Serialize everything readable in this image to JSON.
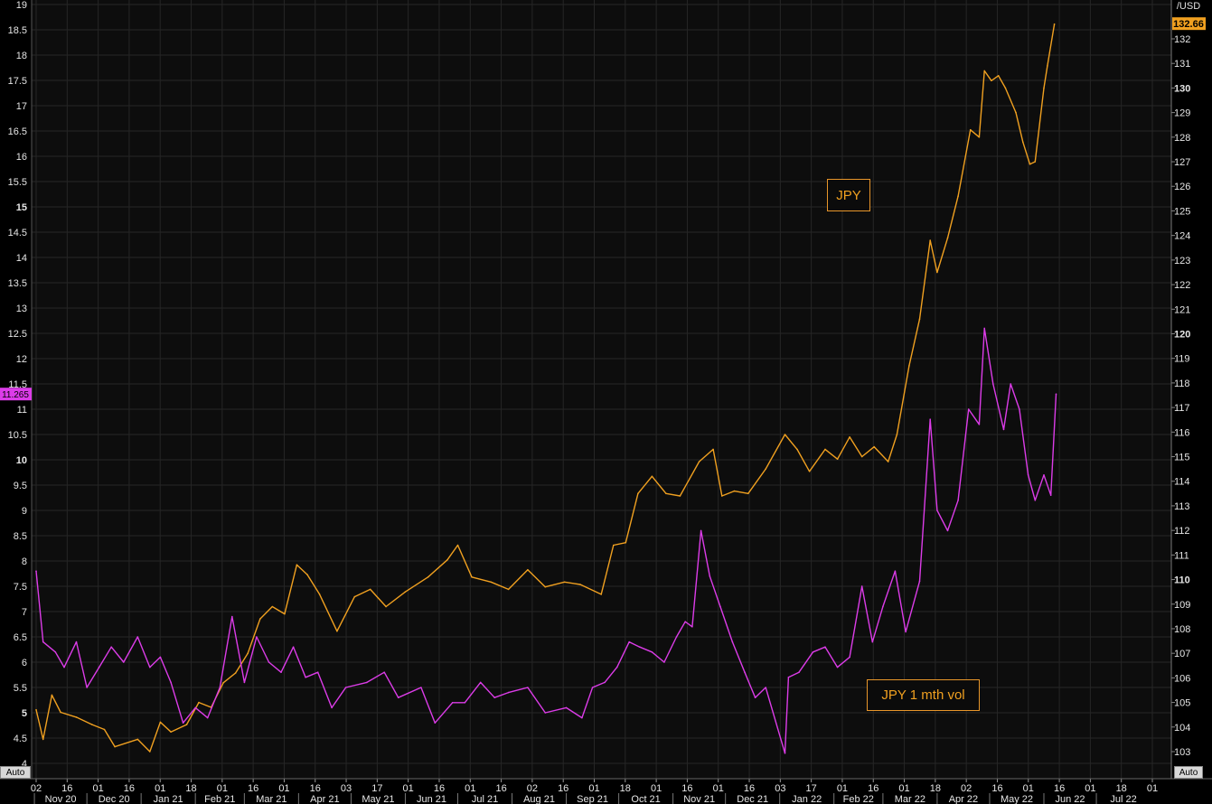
{
  "chart_data": {
    "type": "line",
    "left_axis": {
      "ticks": [
        "4",
        "4.5",
        "5",
        "5.5",
        "6",
        "6.5",
        "7",
        "7.5",
        "8",
        "8.5",
        "9",
        "9.5",
        "10",
        "10.5",
        "11",
        "11.5",
        "12",
        "12.5",
        "13",
        "13.5",
        "14",
        "14.5",
        "15",
        "15.5",
        "16",
        "16.5",
        "17",
        "17.5",
        "18",
        "18.5",
        "19"
      ],
      "range": [
        4,
        19
      ],
      "last_value_label": "11.265"
    },
    "right_axis": {
      "unit_label": "/USD",
      "ticks": [
        "103",
        "104",
        "105",
        "106",
        "107",
        "108",
        "109",
        "110",
        "111",
        "112",
        "113",
        "114",
        "115",
        "116",
        "117",
        "118",
        "119",
        "120",
        "121",
        "122",
        "123",
        "124",
        "125",
        "126",
        "127",
        "128",
        "129",
        "130",
        "131",
        "132"
      ],
      "range": [
        102.7,
        133.5
      ],
      "last_value_label": "132.66"
    },
    "x_axis": {
      "day_ticks": [
        "02",
        "16",
        "01",
        "16",
        "01",
        "18",
        "01",
        "16",
        "01",
        "16",
        "03",
        "17",
        "01",
        "16",
        "01",
        "16",
        "02",
        "16",
        "01",
        "18",
        "01",
        "16",
        "01",
        "16",
        "03",
        "17",
        "01",
        "16",
        "01",
        "18",
        "02",
        "16",
        "01",
        "16",
        "01",
        "18",
        "01"
      ],
      "month_labels": [
        "Nov 20",
        "Dec 20",
        "Jan 21",
        "Feb 21",
        "Mar 21",
        "Apr 21",
        "May 21",
        "Jun 21",
        "Jul 21",
        "Aug 21",
        "Sep 21",
        "Oct 21",
        "Nov 21",
        "Dec 21",
        "Jan 22",
        "Feb 22",
        "Mar 22",
        "Apr 22",
        "May 22",
        "Jun 22",
        "Jul 22"
      ]
    },
    "series": [
      {
        "name": "JPY",
        "axis": "right",
        "color": "#f0a020",
        "points": [
          [
            "2020-11-02",
            104.7
          ],
          [
            "2020-11-06",
            103.5
          ],
          [
            "2020-11-11",
            105.3
          ],
          [
            "2020-11-16",
            104.6
          ],
          [
            "2020-11-25",
            104.4
          ],
          [
            "2020-12-04",
            104.1
          ],
          [
            "2020-12-11",
            103.9
          ],
          [
            "2020-12-17",
            103.2
          ],
          [
            "2020-12-30",
            103.5
          ],
          [
            "2021-01-06",
            103.0
          ],
          [
            "2021-01-12",
            104.2
          ],
          [
            "2021-01-18",
            103.8
          ],
          [
            "2021-01-27",
            104.1
          ],
          [
            "2021-02-03",
            105.0
          ],
          [
            "2021-02-10",
            104.8
          ],
          [
            "2021-02-17",
            105.8
          ],
          [
            "2021-02-24",
            106.2
          ],
          [
            "2021-03-03",
            107.0
          ],
          [
            "2021-03-10",
            108.4
          ],
          [
            "2021-03-17",
            108.9
          ],
          [
            "2021-03-24",
            108.6
          ],
          [
            "2021-03-31",
            110.6
          ],
          [
            "2021-04-06",
            110.2
          ],
          [
            "2021-04-13",
            109.4
          ],
          [
            "2021-04-23",
            107.9
          ],
          [
            "2021-05-03",
            109.3
          ],
          [
            "2021-05-12",
            109.6
          ],
          [
            "2021-05-21",
            108.9
          ],
          [
            "2021-06-01",
            109.5
          ],
          [
            "2021-06-14",
            110.1
          ],
          [
            "2021-06-25",
            110.8
          ],
          [
            "2021-07-01",
            111.4
          ],
          [
            "2021-07-09",
            110.1
          ],
          [
            "2021-07-20",
            109.9
          ],
          [
            "2021-07-30",
            109.6
          ],
          [
            "2021-08-10",
            110.4
          ],
          [
            "2021-08-20",
            109.7
          ],
          [
            "2021-08-31",
            109.9
          ],
          [
            "2021-09-09",
            109.8
          ],
          [
            "2021-09-21",
            109.4
          ],
          [
            "2021-09-28",
            111.4
          ],
          [
            "2021-10-05",
            111.5
          ],
          [
            "2021-10-12",
            113.5
          ],
          [
            "2021-10-20",
            114.2
          ],
          [
            "2021-10-28",
            113.5
          ],
          [
            "2021-11-05",
            113.4
          ],
          [
            "2021-11-16",
            114.8
          ],
          [
            "2021-11-24",
            115.3
          ],
          [
            "2021-11-29",
            113.4
          ],
          [
            "2021-12-06",
            113.6
          ],
          [
            "2021-12-14",
            113.5
          ],
          [
            "2021-12-24",
            114.5
          ],
          [
            "2022-01-04",
            115.9
          ],
          [
            "2022-01-11",
            115.3
          ],
          [
            "2022-01-18",
            114.4
          ],
          [
            "2022-01-27",
            115.3
          ],
          [
            "2022-02-03",
            114.9
          ],
          [
            "2022-02-10",
            115.8
          ],
          [
            "2022-02-17",
            115.0
          ],
          [
            "2022-02-24",
            115.4
          ],
          [
            "2022-03-04",
            114.8
          ],
          [
            "2022-03-09",
            115.9
          ],
          [
            "2022-03-16",
            118.7
          ],
          [
            "2022-03-22",
            120.6
          ],
          [
            "2022-03-28",
            123.8
          ],
          [
            "2022-04-01",
            122.5
          ],
          [
            "2022-04-07",
            123.9
          ],
          [
            "2022-04-13",
            125.6
          ],
          [
            "2022-04-20",
            128.3
          ],
          [
            "2022-04-25",
            128.0
          ],
          [
            "2022-04-28",
            130.7
          ],
          [
            "2022-05-02",
            130.3
          ],
          [
            "2022-05-06",
            130.5
          ],
          [
            "2022-05-10",
            130.0
          ],
          [
            "2022-05-16",
            129.0
          ],
          [
            "2022-05-20",
            127.8
          ],
          [
            "2022-05-24",
            126.9
          ],
          [
            "2022-05-27",
            127.0
          ],
          [
            "2022-06-01",
            130.0
          ],
          [
            "2022-06-03",
            130.9
          ],
          [
            "2022-06-07",
            132.6
          ]
        ]
      },
      {
        "name": "JPY 1 mth vol",
        "axis": "left",
        "color": "#dc3ce8",
        "points": [
          [
            "2020-11-02",
            7.8
          ],
          [
            "2020-11-06",
            6.4
          ],
          [
            "2020-11-13",
            6.2
          ],
          [
            "2020-11-18",
            5.9
          ],
          [
            "2020-11-25",
            6.4
          ],
          [
            "2020-12-01",
            5.5
          ],
          [
            "2020-12-08",
            5.9
          ],
          [
            "2020-12-15",
            6.3
          ],
          [
            "2020-12-22",
            6.0
          ],
          [
            "2020-12-30",
            6.5
          ],
          [
            "2021-01-06",
            5.9
          ],
          [
            "2021-01-12",
            6.1
          ],
          [
            "2021-01-18",
            5.6
          ],
          [
            "2021-01-25",
            4.8
          ],
          [
            "2021-02-01",
            5.1
          ],
          [
            "2021-02-08",
            4.9
          ],
          [
            "2021-02-15",
            5.5
          ],
          [
            "2021-02-22",
            6.9
          ],
          [
            "2021-03-01",
            5.6
          ],
          [
            "2021-03-08",
            6.5
          ],
          [
            "2021-03-15",
            6.0
          ],
          [
            "2021-03-22",
            5.8
          ],
          [
            "2021-03-29",
            6.3
          ],
          [
            "2021-04-05",
            5.7
          ],
          [
            "2021-04-12",
            5.8
          ],
          [
            "2021-04-20",
            5.1
          ],
          [
            "2021-04-28",
            5.5
          ],
          [
            "2021-05-10",
            5.6
          ],
          [
            "2021-05-20",
            5.8
          ],
          [
            "2021-05-28",
            5.3
          ],
          [
            "2021-06-10",
            5.5
          ],
          [
            "2021-06-18",
            4.8
          ],
          [
            "2021-06-28",
            5.2
          ],
          [
            "2021-07-05",
            5.2
          ],
          [
            "2021-07-14",
            5.6
          ],
          [
            "2021-07-22",
            5.3
          ],
          [
            "2021-07-30",
            5.4
          ],
          [
            "2021-08-10",
            5.5
          ],
          [
            "2021-08-20",
            5.0
          ],
          [
            "2021-09-01",
            5.1
          ],
          [
            "2021-09-10",
            4.9
          ],
          [
            "2021-09-16",
            5.5
          ],
          [
            "2021-09-23",
            5.6
          ],
          [
            "2021-09-30",
            5.9
          ],
          [
            "2021-10-07",
            6.4
          ],
          [
            "2021-10-13",
            6.3
          ],
          [
            "2021-10-20",
            6.2
          ],
          [
            "2021-10-27",
            6.0
          ],
          [
            "2021-11-03",
            6.5
          ],
          [
            "2021-11-08",
            6.8
          ],
          [
            "2021-11-12",
            6.7
          ],
          [
            "2021-11-17",
            8.6
          ],
          [
            "2021-11-22",
            7.7
          ],
          [
            "2021-11-28",
            7.1
          ],
          [
            "2021-12-05",
            6.4
          ],
          [
            "2021-12-12",
            5.8
          ],
          [
            "2021-12-18",
            5.3
          ],
          [
            "2021-12-24",
            5.5
          ],
          [
            "2022-01-04",
            4.2
          ],
          [
            "2022-01-06",
            5.7
          ],
          [
            "2022-01-12",
            5.8
          ],
          [
            "2022-01-20",
            6.2
          ],
          [
            "2022-01-27",
            6.3
          ],
          [
            "2022-02-03",
            5.9
          ],
          [
            "2022-02-10",
            6.1
          ],
          [
            "2022-02-17",
            7.5
          ],
          [
            "2022-02-23",
            6.4
          ],
          [
            "2022-03-01",
            7.1
          ],
          [
            "2022-03-08",
            7.8
          ],
          [
            "2022-03-14",
            6.6
          ],
          [
            "2022-03-22",
            7.6
          ],
          [
            "2022-03-28",
            10.8
          ],
          [
            "2022-04-01",
            9.0
          ],
          [
            "2022-04-07",
            8.6
          ],
          [
            "2022-04-13",
            9.2
          ],
          [
            "2022-04-19",
            11.0
          ],
          [
            "2022-04-25",
            10.7
          ],
          [
            "2022-04-28",
            12.6
          ],
          [
            "2022-05-03",
            11.5
          ],
          [
            "2022-05-09",
            10.6
          ],
          [
            "2022-05-13",
            11.5
          ],
          [
            "2022-05-18",
            11.0
          ],
          [
            "2022-05-23",
            9.7
          ],
          [
            "2022-05-27",
            9.2
          ],
          [
            "2022-06-01",
            9.7
          ],
          [
            "2022-06-05",
            9.3
          ],
          [
            "2022-06-08",
            11.3
          ]
        ]
      }
    ],
    "annotations": [
      {
        "text": "JPY"
      },
      {
        "text": "JPY  1 mth vol"
      }
    ],
    "grid": true
  },
  "controls": {
    "auto_label": "Auto"
  }
}
